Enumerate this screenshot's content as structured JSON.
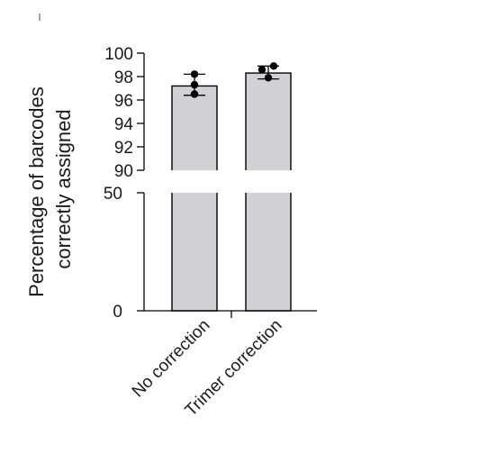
{
  "chart_data": {
    "type": "bar",
    "ylabel": [
      "Percentage of barcodes",
      "correctly assigned"
    ],
    "categories": [
      "No correction",
      "Trimer correction"
    ],
    "values": [
      97.2,
      98.3
    ],
    "error": [
      {
        "low": 96.4,
        "high": 98.2
      },
      {
        "low": 97.8,
        "high": 98.9
      }
    ],
    "points": [
      [
        98.2,
        97.3,
        96.5
      ],
      [
        98.9,
        98.6,
        97.9
      ]
    ],
    "axis_break": {
      "lower_range": [
        0,
        50
      ],
      "upper_range": [
        90,
        100
      ]
    },
    "y_ticks_upper": [
      "90",
      "92",
      "94",
      "96",
      "98",
      "100"
    ],
    "y_ticks_lower": [
      "0",
      "50"
    ],
    "bar_color": "#d2d2d4",
    "edge_color": "#000000",
    "grid": false
  }
}
